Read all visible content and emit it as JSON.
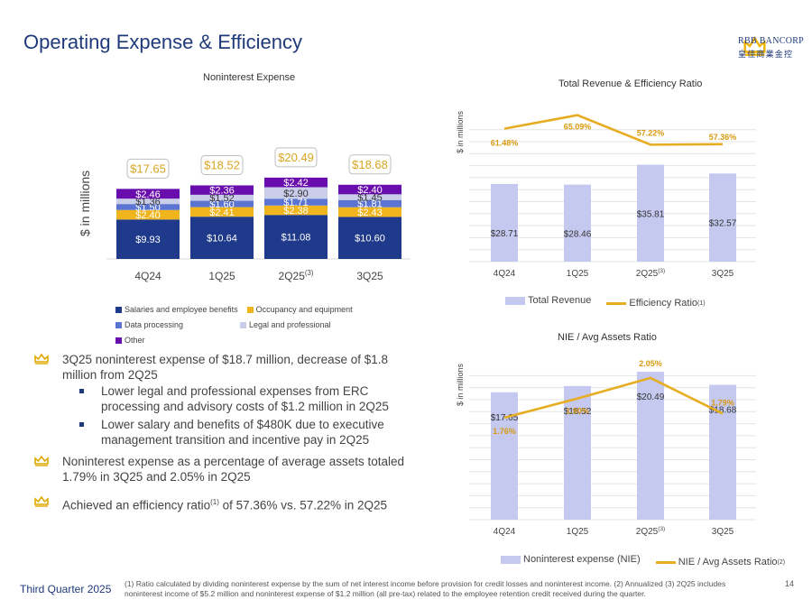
{
  "header": {
    "title": "Operating Expense & Efficiency"
  },
  "logo": {
    "name_line1": "RBB BANCORP",
    "name_line2": "皇佳商業金控",
    "colors": {
      "crown": "#f0b400",
      "text": "#1f3a7a"
    }
  },
  "colors": {
    "navy": "#1f3a8a",
    "gold": "#f0b41c",
    "mid_blue": "#5b74d2",
    "light_lavender": "#c9cdea",
    "purple": "#6a0dad",
    "total_box_border": "#bfbfbf",
    "total_text": "#d9a521",
    "rev_bar": "#c5c9f0",
    "line": "#e6ad22"
  },
  "chart_data": [
    {
      "type": "bar",
      "stacked": true,
      "title": "Noninterest Expense",
      "ylabel": "$ in millions",
      "categories": [
        "4Q24",
        "1Q25",
        "2Q25",
        "3Q25"
      ],
      "category_superscripts": [
        "",
        "",
        "(3)",
        ""
      ],
      "series": [
        {
          "name": "Salaries and employee benefits",
          "values": [
            9.93,
            10.64,
            11.08,
            10.6
          ],
          "labels": [
            "$9.93",
            "$10.64",
            "$11.08",
            "$10.60"
          ]
        },
        {
          "name": "Occupancy and equipment",
          "values": [
            2.4,
            2.41,
            2.38,
            2.43
          ],
          "labels": [
            "$2.40",
            "$2.41",
            "$2.38",
            "$2.43"
          ]
        },
        {
          "name": "Data processing",
          "values": [
            1.5,
            1.6,
            1.71,
            1.81
          ],
          "labels": [
            "$1.50",
            "$1.60",
            "$1.71",
            "$1.81"
          ]
        },
        {
          "name": "Legal and professional",
          "values": [
            1.36,
            1.52,
            2.9,
            1.45
          ],
          "labels": [
            "$1.36",
            "$1.52",
            "$2.90",
            "$1.45"
          ]
        },
        {
          "name": "Other",
          "values": [
            2.46,
            2.36,
            2.42,
            2.4
          ],
          "labels": [
            "$2.46",
            "$2.36",
            "$2.42",
            "$2.40"
          ]
        }
      ],
      "totals": [
        17.65,
        18.52,
        20.49,
        18.68
      ],
      "total_labels": [
        "$17.65",
        "$18.52",
        "$20.49",
        "$18.68"
      ],
      "ylim": [
        0,
        22
      ],
      "legend_position": "bottom"
    },
    {
      "type": "bar",
      "title": "Total Revenue  & Efficiency Ratio",
      "ylabel": "$ in millions",
      "categories": [
        "4Q24",
        "1Q25",
        "2Q25",
        "3Q25"
      ],
      "category_superscripts": [
        "",
        "",
        "(3)",
        ""
      ],
      "series": [
        {
          "name": "Total Revenue",
          "kind": "bar",
          "values": [
            28.71,
            28.46,
            35.81,
            32.57
          ],
          "labels": [
            "$28.71",
            "$28.46",
            "$35.81",
            "$32.57"
          ]
        },
        {
          "name": "Efficiency Ratio",
          "name_superscript": "(1)",
          "kind": "line",
          "values": [
            61.48,
            65.09,
            57.22,
            57.36
          ],
          "labels": [
            "61.48%",
            "65.09%",
            "57.22%",
            "57.36%"
          ]
        }
      ],
      "ylim_bar": [
        0,
        40
      ],
      "legend_position": "bottom"
    },
    {
      "type": "bar",
      "title": "NIE / Avg Assets  Ratio",
      "ylabel": "$ in millions",
      "categories": [
        "4Q24",
        "1Q25",
        "2Q25",
        "3Q25"
      ],
      "category_superscripts": [
        "",
        "",
        "(3)",
        ""
      ],
      "series": [
        {
          "name": "Noninterest expense (NIE)",
          "kind": "bar",
          "values": [
            17.65,
            18.52,
            20.49,
            18.68
          ],
          "labels": [
            "$17.65",
            "$18.52",
            "$20.49",
            "$18.68"
          ]
        },
        {
          "name": "NIE / Avg Assets  Ratio",
          "name_superscript": "(2)",
          "kind": "line",
          "values": [
            1.76,
            1.9,
            2.05,
            1.79
          ],
          "labels": [
            "1.76%",
            "1.90%",
            "2.05%",
            "1.79%"
          ]
        }
      ],
      "ylim_bar": [
        0,
        22
      ],
      "legend_position": "bottom"
    }
  ],
  "bullets": [
    {
      "text": "3Q25 noninterest expense of $18.7 million, decrease of $1.8 million from 2Q25"
    },
    {
      "text": "Noninterest expense as a percentage of average assets totaled 1.79% in 3Q25 and 2.05% in 2Q25"
    },
    {
      "text_before": "Achieved an efficiency ratio",
      "sup": "(1)",
      "text_after": " of 57.36% vs. 57.22% in 2Q25"
    }
  ],
  "sub_bullets": [
    {
      "text": "Lower legal and professional expenses from ERC processing and advisory costs of $1.2 million in 2Q25"
    },
    {
      "text": "Lower salary and benefits of $480K due to  executive management transition and incentive pay in 2Q25"
    }
  ],
  "footer": {
    "label": "Third Quarter 2025",
    "footnote": "(1) Ratio calculated by dividing noninterest expense by the sum of net interest income before provision for credit losses and noninterest income. (2) Annualized (3) 2Q25 includes noninterest income of $5.2 million and noninterest expense of $1.2 million (all pre-tax) related to the employee retention credit received during the quarter.",
    "page_number": "14"
  }
}
